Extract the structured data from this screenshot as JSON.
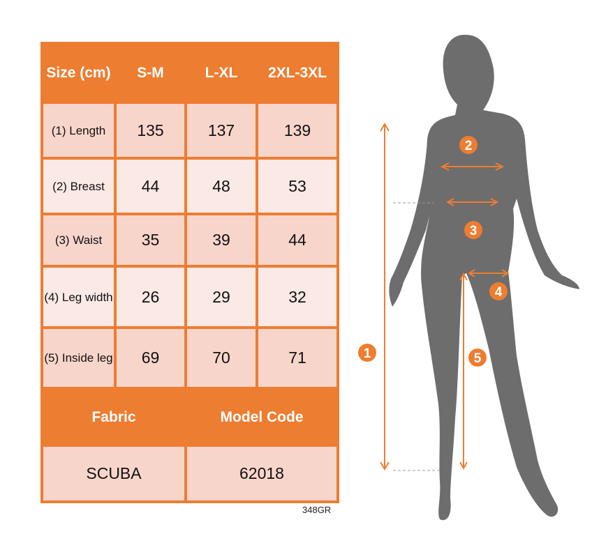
{
  "table": {
    "headers": [
      "Size (cm)",
      "S-M",
      "L-XL",
      "2XL-3XL"
    ],
    "rows": [
      {
        "label": "(1) Length",
        "values": [
          "135",
          "137",
          "139"
        ]
      },
      {
        "label": "(2) Breast",
        "values": [
          "44",
          "48",
          "53"
        ]
      },
      {
        "label": "(3) Waist",
        "values": [
          "35",
          "39",
          "44"
        ]
      },
      {
        "label": "(4) Leg width",
        "values": [
          "26",
          "29",
          "32"
        ]
      },
      {
        "label": "(5) Inside leg",
        "values": [
          "69",
          "70",
          "71"
        ]
      }
    ],
    "fabric_label": "Fabric",
    "model_code_label": "Model Code",
    "fabric_value": "SCUBA",
    "model_code_value": "62018"
  },
  "product_code": "348GR",
  "figure": {
    "markers": [
      "1",
      "2",
      "3",
      "4",
      "5"
    ]
  },
  "colors": {
    "accent": "#ed7d31",
    "row_dark": "#f8d5cb",
    "row_light": "#fbe9e5",
    "silhouette": "#6d6d6d"
  }
}
